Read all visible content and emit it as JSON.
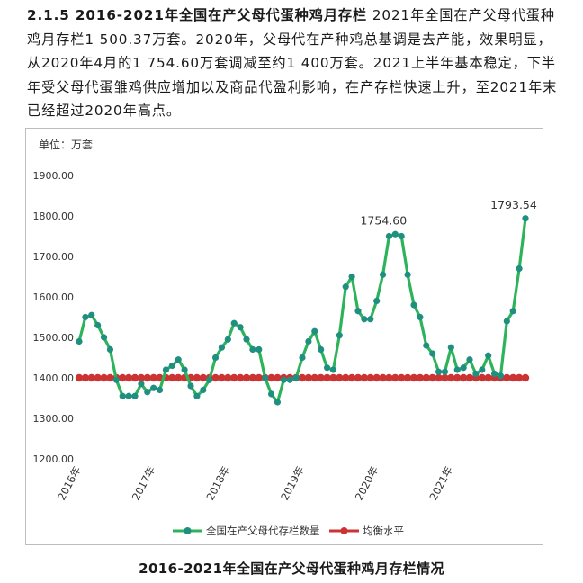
{
  "article": {
    "heading": "2.1.5 2016-2021年全国在产父母代蛋种鸡月存栏",
    "body": " 2021年全国在产父母代蛋种鸡月存栏1 500.37万套。2020年，父母代在产种鸡总基调是去产能，效果明显，从2020年4月的1 754.60万套调减至约1 400万套。2021上半年基本稳定，下半年受父母代蛋雏鸡供应增加以及商品代盈利影响，在产存栏快速上升，至2021年末已经超过2020年高点。"
  },
  "caption": "2016-2021年全国在产父母代蛋种鸡月存栏情况",
  "chart_data": {
    "type": "line",
    "unit_label": "单位：万套",
    "ylim": [
      1200,
      1900
    ],
    "y_ticks": [
      "1200.00",
      "1300.00",
      "1400.00",
      "1500.00",
      "1600.00",
      "1700.00",
      "1800.00",
      "1900.00"
    ],
    "x_tick_labels": [
      "2016年",
      "2017年",
      "2018年",
      "2019年",
      "2020年",
      "2021年"
    ],
    "grid": false,
    "legend_position": "bottom",
    "series": [
      {
        "name": "全国在产父母代存栏数量",
        "color": "#2db35a",
        "marker_color": "#1f8f7f",
        "values": [
          1490,
          1550,
          1555,
          1530,
          1500,
          1470,
          1395,
          1355,
          1355,
          1355,
          1385,
          1365,
          1375,
          1370,
          1420,
          1430,
          1445,
          1420,
          1380,
          1355,
          1370,
          1395,
          1450,
          1475,
          1495,
          1535,
          1525,
          1495,
          1470,
          1470,
          1400,
          1360,
          1340,
          1395,
          1395,
          1400,
          1450,
          1490,
          1515,
          1470,
          1425,
          1420,
          1505,
          1625,
          1650,
          1565,
          1545,
          1545,
          1590,
          1655,
          1750,
          1755,
          1750,
          1655,
          1580,
          1550,
          1480,
          1460,
          1415,
          1415,
          1475,
          1420,
          1425,
          1445,
          1410,
          1420,
          1455,
          1410,
          1405,
          1540,
          1565,
          1670,
          1794
        ]
      },
      {
        "name": "均衡水平",
        "color": "#cc3333",
        "marker_color": "#cc3333",
        "constant_value": 1400
      }
    ],
    "annotations": [
      {
        "text": "1754.60",
        "index": 51,
        "value": 1754.6
      },
      {
        "text": "1793.54",
        "index": 72,
        "value": 1793.54
      }
    ]
  }
}
